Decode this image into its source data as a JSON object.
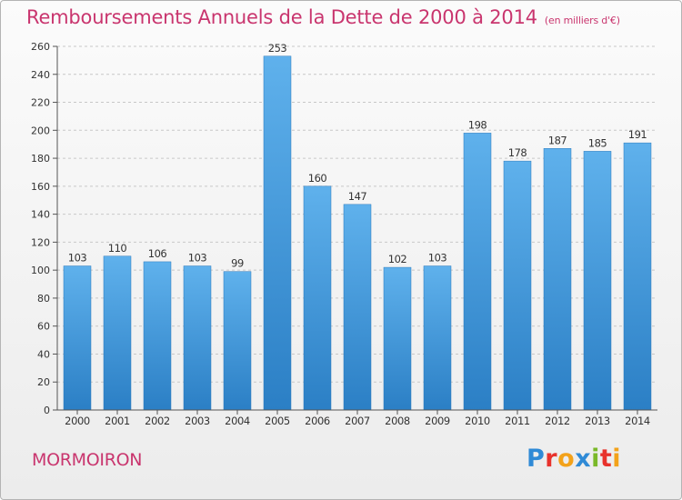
{
  "title": "Remboursements Annuels de la Dette de 2000 à 2014",
  "subtitle": "(en milliers d'€)",
  "commune": "MORMOIRON",
  "logo": {
    "letters": [
      "P",
      "r",
      "o",
      "x",
      "i",
      "t",
      "i"
    ],
    "colors": [
      "#2f8ad6",
      "#e8322c",
      "#f3a21a",
      "#2f8ad6",
      "#7ab929",
      "#e8322c",
      "#f3a21a"
    ]
  },
  "colors": {
    "accent": "#c9356e",
    "bar_top": "#5fb1ec",
    "bar_bottom": "#2b7fc5"
  },
  "chart_data": {
    "type": "bar",
    "categories": [
      "2000",
      "2001",
      "2002",
      "2003",
      "2004",
      "2005",
      "2006",
      "2007",
      "2008",
      "2009",
      "2010",
      "2011",
      "2012",
      "2013",
      "2014"
    ],
    "values": [
      103,
      110,
      106,
      103,
      99,
      253,
      160,
      147,
      102,
      103,
      198,
      178,
      187,
      185,
      191
    ],
    "ylim": [
      0,
      260
    ],
    "yticks": [
      0,
      20,
      40,
      60,
      80,
      100,
      120,
      140,
      160,
      180,
      200,
      220,
      240,
      260
    ],
    "grid": true,
    "title": "Remboursements Annuels de la Dette de 2000 à 2014",
    "xlabel": "",
    "ylabel": ""
  }
}
